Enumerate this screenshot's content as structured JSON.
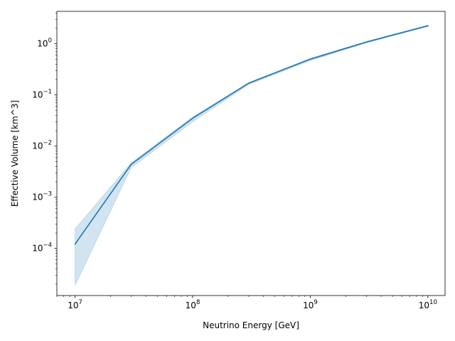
{
  "chart_data": {
    "type": "line",
    "title": "",
    "xlabel": "Neutrino Energy [GeV]",
    "ylabel": "Effective Volume [km^3]",
    "xscale": "log",
    "yscale": "log",
    "xlim": [
      7000000.0,
      14000000000.0
    ],
    "ylim": [
      1.2e-05,
      4.3
    ],
    "grid": false,
    "legend": "none",
    "line_color": "#1f77b4",
    "band_color": "#1f77b4",
    "series": [
      {
        "x": [
          10000000.0,
          30000000.0,
          100000000.0,
          300000000.0,
          1000000000.0,
          3000000000.0,
          10000000000.0
        ],
        "y": [
          0.000122,
          0.0044,
          0.035,
          0.17,
          0.5,
          1.08,
          2.25
        ],
        "lower": [
          1.9e-05,
          0.0038,
          0.03,
          0.16,
          0.47,
          1.04,
          2.18
        ],
        "upper": [
          0.00024,
          0.0047,
          0.037,
          0.175,
          0.52,
          1.11,
          2.3
        ]
      }
    ],
    "xticks": [
      {
        "base": "10",
        "exp": "7"
      },
      {
        "base": "10",
        "exp": "8"
      },
      {
        "base": "10",
        "exp": "9"
      },
      {
        "base": "10",
        "exp": "10"
      }
    ],
    "yticks": [
      {
        "base": "10",
        "exp": "−4"
      },
      {
        "base": "10",
        "exp": "−3"
      },
      {
        "base": "10",
        "exp": "−2"
      },
      {
        "base": "10",
        "exp": "−1"
      },
      {
        "base": "10",
        "exp": "0"
      }
    ]
  }
}
